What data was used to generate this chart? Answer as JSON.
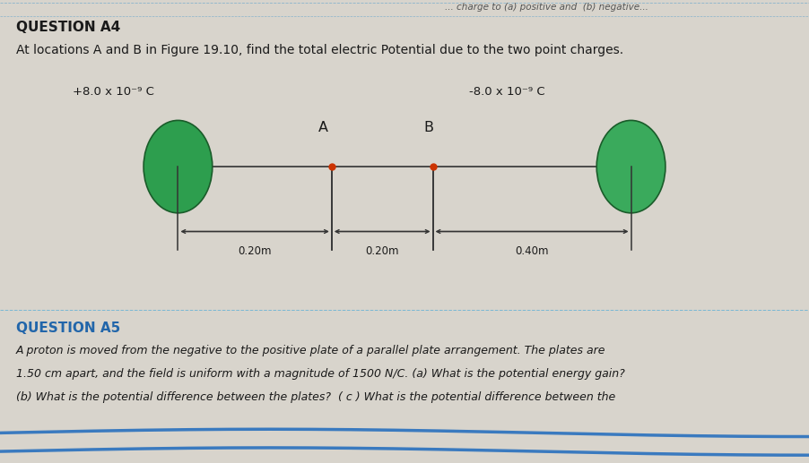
{
  "background_color": "#d8d4cc",
  "paper_color": "#f0eeea",
  "title_q4": "QUESTION A4",
  "subtitle_q4": "At locations A and B in Figure 19.10, find the total electric Potential due to the two point charges.",
  "charge_left_label": "+8.0 x 10⁻⁹ C",
  "charge_right_label": "-8.0 x 10⁻⁹ C",
  "ellipse_color_left": "#2d9e4e",
  "ellipse_color_right": "#3aaa5c",
  "ellipse_edge_color": "#1a5c2a",
  "point_color": "#cc3300",
  "label_A": "A",
  "label_B": "B",
  "dist1_label": "0.20m",
  "dist2_label": "0.20m",
  "dist3_label": "0.40m",
  "title_q5": "QUESTION A5",
  "text_q5_line1": "A proton is moved from the negative to the positive plate of a parallel plate arrangement. The plates are",
  "text_q5_line2": "1.50 cm apart, and the field is uniform with a magnitude of 1500 N/C. (a) What is the potential energy gain?",
  "text_q5_line3": "(b) What is the potential difference between the plates?  ( c ) What is the potential difference between the",
  "section_title_fontsize": 11,
  "body_fontsize": 9,
  "top_text": "... charge to (a) positive and (b) negative..."
}
